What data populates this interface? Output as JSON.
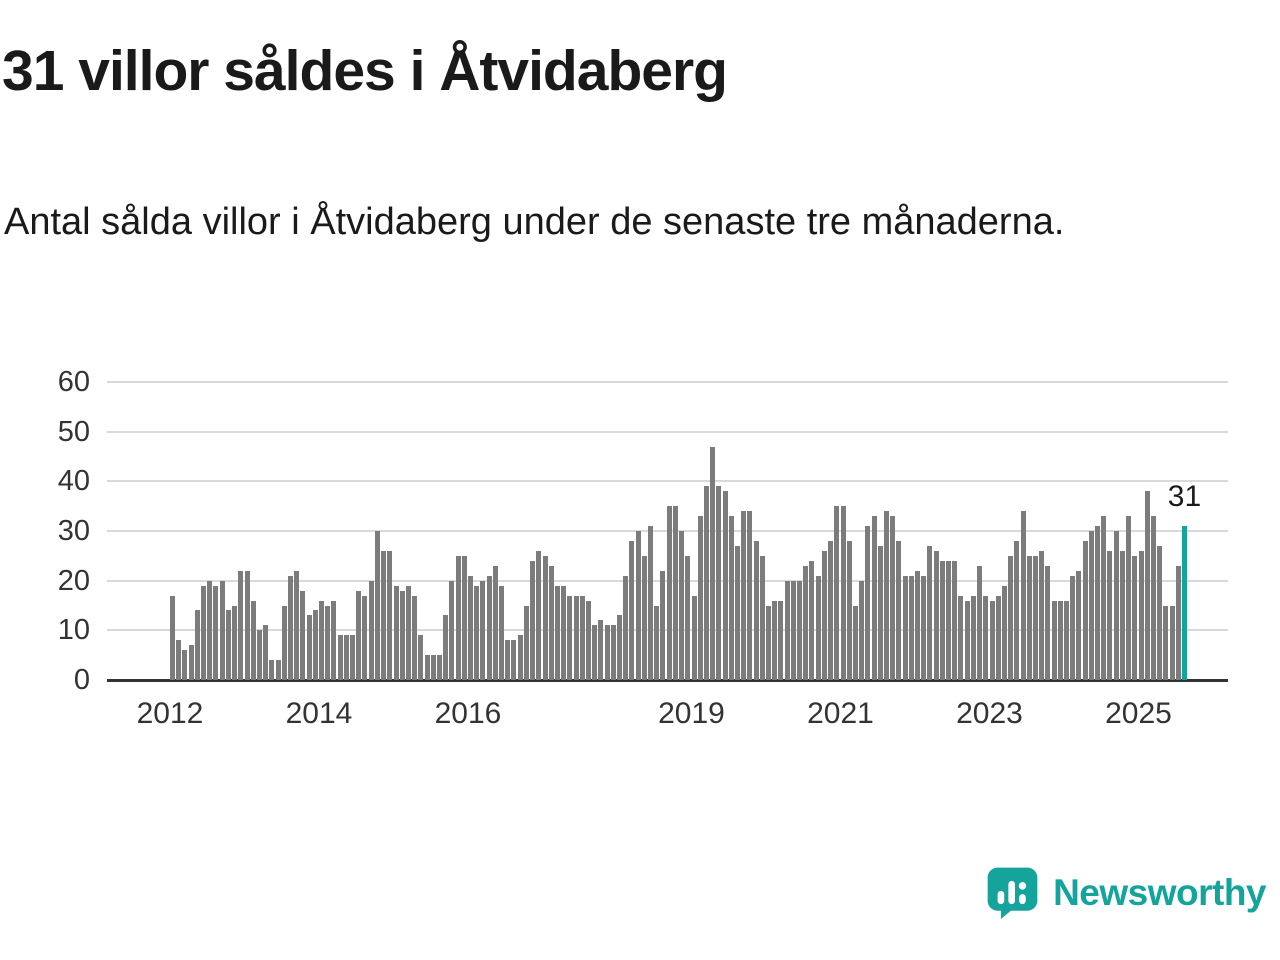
{
  "header": {
    "title": "31 villor såldes i Åtvidaberg",
    "subtitle": "Antal sålda villor i Åtvidaberg under de senaste tre månaderna."
  },
  "chart_data": {
    "type": "bar",
    "title": "31 villor såldes i Åtvidaberg",
    "subtitle": "Antal sålda villor i Åtvidaberg under de senaste tre månaderna.",
    "frequency": "monthly",
    "start_year": 2012,
    "ylim": [
      0,
      60
    ],
    "yticks": [
      0,
      10,
      20,
      30,
      40,
      50,
      60
    ],
    "xticks": [
      2012,
      2014,
      2016,
      2019,
      2021,
      2023,
      2025
    ],
    "grid": true,
    "legend": "none",
    "bar_color": "#7c7c7c",
    "highlight_color": "#14a49c",
    "highlight_last": true,
    "highlight_label": "31",
    "values": [
      17,
      8,
      6,
      7,
      14,
      19,
      20,
      19,
      20,
      14,
      15,
      22,
      22,
      16,
      10,
      11,
      4,
      4,
      15,
      21,
      22,
      18,
      13,
      14,
      16,
      15,
      16,
      9,
      9,
      9,
      18,
      17,
      20,
      30,
      26,
      26,
      19,
      18,
      19,
      17,
      9,
      5,
      5,
      5,
      13,
      20,
      25,
      25,
      21,
      19,
      20,
      21,
      23,
      19,
      8,
      8,
      9,
      15,
      24,
      26,
      25,
      23,
      19,
      19,
      17,
      17,
      17,
      16,
      11,
      12,
      11,
      11,
      13,
      21,
      28,
      30,
      25,
      31,
      15,
      22,
      35,
      35,
      30,
      25,
      17,
      33,
      39,
      47,
      39,
      38,
      33,
      27,
      34,
      34,
      28,
      25,
      15,
      16,
      16,
      20,
      20,
      20,
      23,
      24,
      21,
      26,
      28,
      35,
      35,
      28,
      15,
      20,
      31,
      33,
      27,
      34,
      33,
      28,
      21,
      21,
      22,
      21,
      27,
      26,
      24,
      24,
      24,
      17,
      16,
      17,
      23,
      17,
      16,
      17,
      19,
      25,
      28,
      34,
      25,
      25,
      26,
      23,
      16,
      16,
      16,
      21,
      22,
      28,
      30,
      31,
      33,
      26,
      30,
      26,
      33,
      25,
      26,
      38,
      33,
      27,
      15,
      15,
      23,
      31
    ]
  },
  "footer": {
    "brand": "Newsworthy",
    "brand_color": "#14a49c",
    "logo_icon": "bar-chart-speech-bubble-icon"
  }
}
